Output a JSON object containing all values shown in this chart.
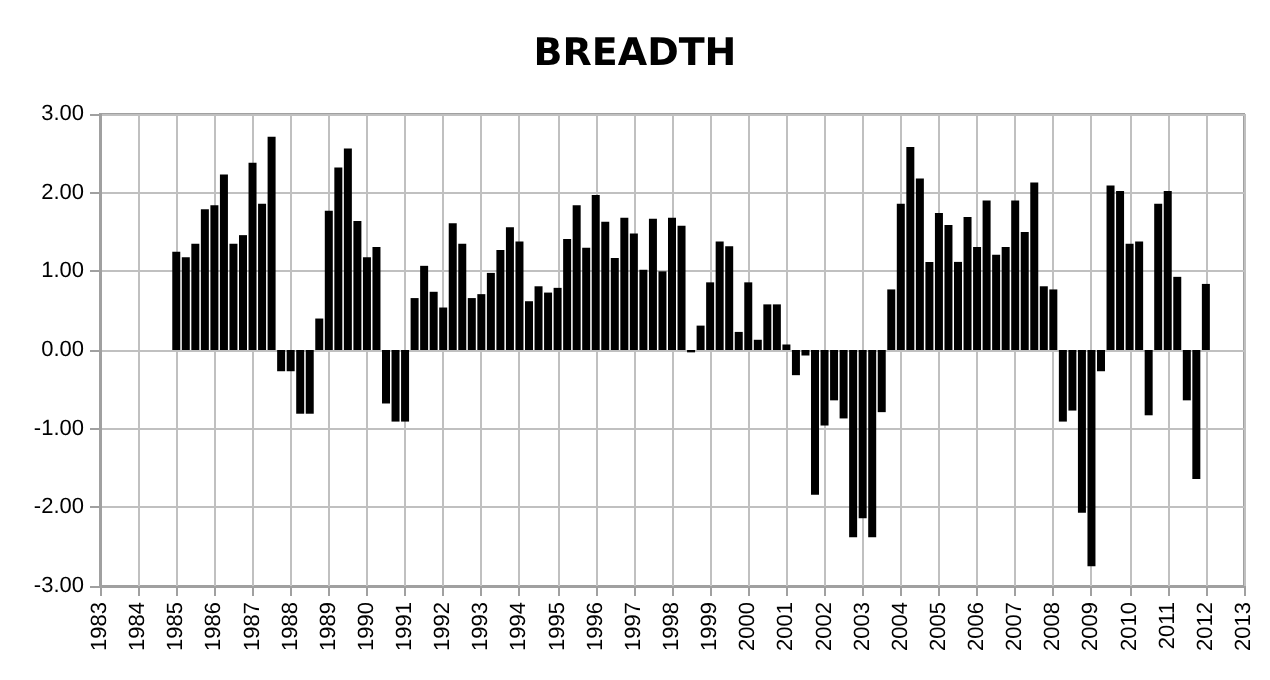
{
  "chart_data": {
    "type": "bar",
    "title": "BREADTH",
    "x": [
      1985,
      1985.25,
      1985.5,
      1985.75,
      1986,
      1986.25,
      1986.5,
      1986.75,
      1987,
      1987.25,
      1987.5,
      1987.75,
      1988,
      1988.25,
      1988.5,
      1988.75,
      1989,
      1989.25,
      1989.5,
      1989.75,
      1990,
      1990.25,
      1990.5,
      1990.75,
      1991,
      1991.25,
      1991.5,
      1991.75,
      1992,
      1992.25,
      1992.5,
      1992.75,
      1993,
      1993.25,
      1993.5,
      1993.75,
      1994,
      1994.25,
      1994.5,
      1994.75,
      1995,
      1995.25,
      1995.5,
      1995.75,
      1996,
      1996.25,
      1996.5,
      1996.75,
      1997,
      1997.25,
      1997.5,
      1997.75,
      1998,
      1998.25,
      1998.5,
      1998.75,
      1999,
      1999.25,
      1999.5,
      1999.75,
      2000,
      2000.25,
      2000.5,
      2000.75,
      2001,
      2001.25,
      2001.5,
      2001.75,
      2002,
      2002.25,
      2002.5,
      2002.75,
      2003,
      2003.25,
      2003.5,
      2003.75,
      2004,
      2004.25,
      2004.5,
      2004.75,
      2005,
      2005.25,
      2005.5,
      2005.75,
      2006,
      2006.25,
      2006.5,
      2006.75,
      2007,
      2007.25,
      2007.5,
      2007.75,
      2008,
      2008.25,
      2008.5,
      2008.75,
      2009,
      2009.25,
      2009.5,
      2009.75,
      2010,
      2010.25,
      2010.5,
      2010.75,
      2011,
      2011.25,
      2011.5,
      2011.75,
      2012
    ],
    "values": [
      1.25,
      1.18,
      1.35,
      1.79,
      1.84,
      2.23,
      1.35,
      1.46,
      2.38,
      1.86,
      2.71,
      -0.27,
      -0.27,
      -0.81,
      -0.81,
      0.4,
      1.77,
      2.32,
      2.56,
      1.64,
      1.18,
      1.31,
      -0.68,
      -0.91,
      -0.91,
      0.66,
      1.07,
      0.74,
      0.54,
      1.61,
      1.35,
      0.66,
      0.71,
      0.98,
      1.27,
      1.56,
      1.38,
      0.62,
      0.81,
      0.73,
      0.79,
      1.41,
      1.84,
      1.3,
      1.97,
      1.63,
      1.17,
      1.68,
      1.48,
      1.02,
      1.67,
      1.0,
      1.68,
      1.58,
      -0.03,
      0.31,
      0.86,
      1.38,
      1.32,
      0.23,
      0.86,
      0.13,
      0.58,
      0.58,
      0.07,
      -0.32,
      -0.07,
      -1.84,
      -0.96,
      -0.64,
      -0.87,
      -2.38,
      -2.14,
      -2.38,
      -0.79,
      0.77,
      1.86,
      2.58,
      2.18,
      1.12,
      1.74,
      1.59,
      1.12,
      1.69,
      1.31,
      1.9,
      1.21,
      1.31,
      1.9,
      1.5,
      2.13,
      0.81,
      0.77,
      -0.91,
      -0.77,
      -2.07,
      -2.75,
      -0.27,
      2.09,
      2.02,
      1.35,
      1.38,
      -0.83,
      1.86,
      2.02,
      0.93,
      -0.64,
      -1.64,
      0.84
    ],
    "color": "#000000",
    "xlim": [
      1983,
      2013
    ],
    "xticks": [
      1983,
      1984,
      1985,
      1986,
      1987,
      1988,
      1989,
      1990,
      1991,
      1992,
      1993,
      1994,
      1995,
      1996,
      1997,
      1998,
      1999,
      2000,
      2001,
      2002,
      2003,
      2004,
      2005,
      2006,
      2007,
      2008,
      2009,
      2010,
      2011,
      2012,
      2013
    ],
    "ylim": [
      -3,
      3
    ],
    "yticks": [
      {
        "value": -3,
        "label": "-3.00"
      },
      {
        "value": -2,
        "label": "-2.00"
      },
      {
        "value": -1,
        "label": "-1.00"
      },
      {
        "value": 0,
        "label": "0.00"
      },
      {
        "value": 1,
        "label": "1.00"
      },
      {
        "value": 2,
        "label": "2.00"
      },
      {
        "value": 3,
        "label": "3.00"
      }
    ],
    "grid": true
  }
}
